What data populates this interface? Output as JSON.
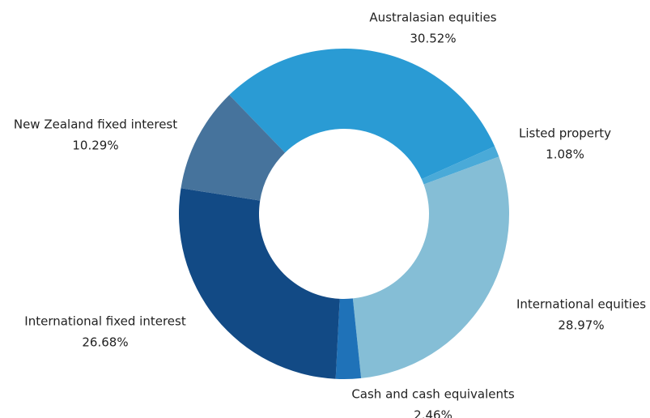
{
  "chart_data": {
    "type": "donut",
    "categories": [
      "Australasian equities",
      "Listed property",
      "International equities",
      "Cash and cash equivalents",
      "International fixed interest",
      "New Zealand fixed interest"
    ],
    "values": [
      30.52,
      1.08,
      28.97,
      2.46,
      26.68,
      10.29
    ],
    "value_labels": [
      "30.52%",
      "1.08%",
      "28.97%",
      "2.46%",
      "26.68%",
      "10.29%"
    ],
    "colors": [
      "#2a9bd4",
      "#4aaad8",
      "#85bed6",
      "#1f72b8",
      "#124a85",
      "#46739c"
    ]
  }
}
